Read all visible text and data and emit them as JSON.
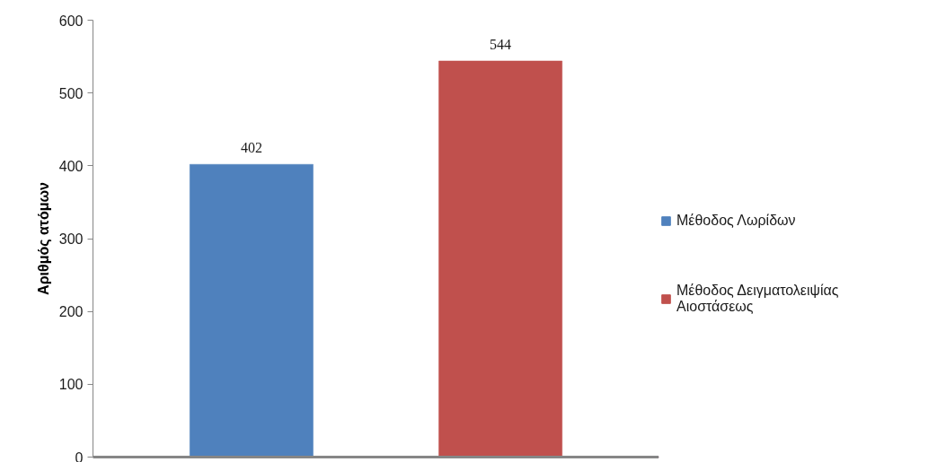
{
  "chart_data": {
    "type": "bar",
    "ylabel": "Αριθμός ατόμων",
    "categories": [
      null
    ],
    "series": [
      {
        "name": "Μέθοδος Λωρίδων",
        "color": "#4f81bd",
        "values": [
          402
        ]
      },
      {
        "name": "Μέθοδος Δειγματολειψίας Αιοστάσεως",
        "color": "#c0504d",
        "values": [
          544
        ]
      }
    ],
    "ylim": [
      0,
      600
    ],
    "yticks": [
      0,
      100,
      200,
      300,
      400,
      500,
      600
    ],
    "data_labels": true,
    "legend": "right"
  }
}
